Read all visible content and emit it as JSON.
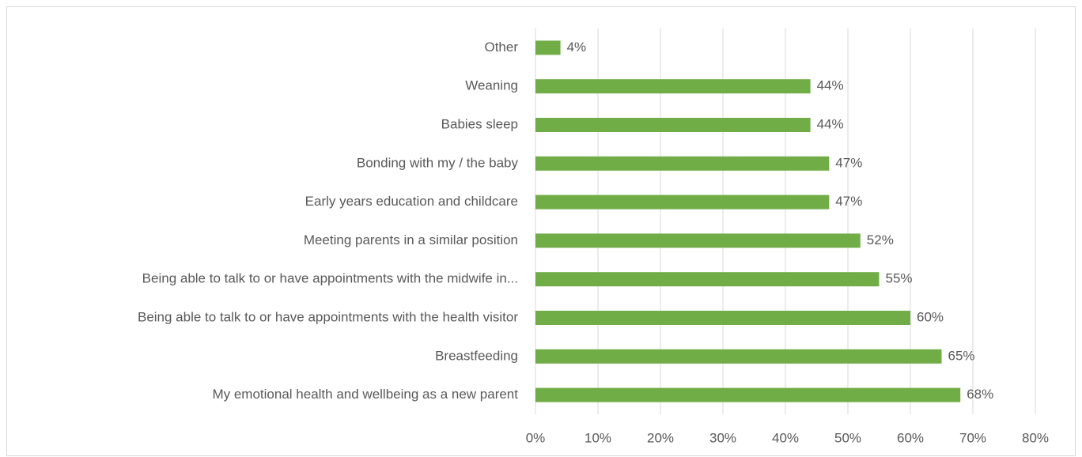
{
  "chart_data": {
    "type": "bar",
    "orientation": "horizontal",
    "categories": [
      "Other",
      "Weaning",
      "Babies sleep",
      "Bonding with my / the baby",
      "Early years education and childcare",
      "Meeting parents in a similar position",
      "Being able to talk to or have appointments with the midwife in...",
      "Being able to talk to or have appointments with the health visitor",
      "Breastfeeding",
      "My emotional health and wellbeing as a new parent"
    ],
    "values": [
      4,
      44,
      44,
      47,
      47,
      52,
      55,
      60,
      65,
      68
    ],
    "value_labels": [
      "4%",
      "44%",
      "44%",
      "47%",
      "47%",
      "52%",
      "55%",
      "60%",
      "65%",
      "68%"
    ],
    "color": "#70ad47",
    "xlim": [
      0,
      80
    ],
    "xticks": [
      {
        "value": 0,
        "label": "0%"
      },
      {
        "value": 10,
        "label": "10%"
      },
      {
        "value": 20,
        "label": "20%"
      },
      {
        "value": 30,
        "label": "30%"
      },
      {
        "value": 40,
        "label": "40%"
      },
      {
        "value": 50,
        "label": "50%"
      },
      {
        "value": 60,
        "label": "60%"
      },
      {
        "value": 70,
        "label": "70%"
      },
      {
        "value": 80,
        "label": "80%"
      }
    ],
    "grid": true
  }
}
